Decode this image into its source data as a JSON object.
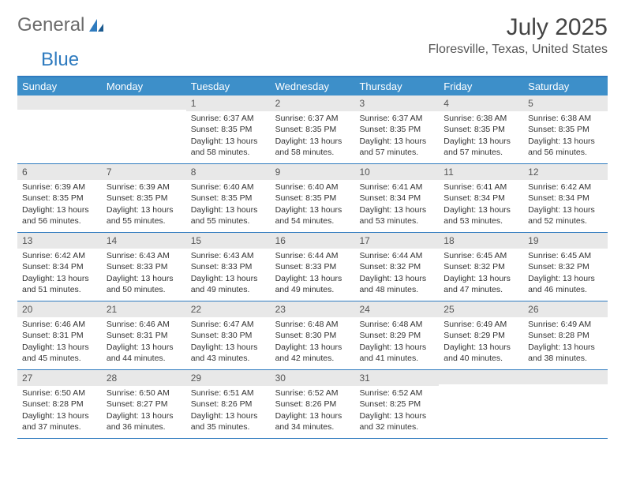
{
  "logo": {
    "text1": "General",
    "text2": "Blue"
  },
  "title": "July 2025",
  "location": "Floresville, Texas, United States",
  "colors": {
    "header_bg": "#3d8fc9",
    "border": "#2f7bbf",
    "daynum_bg": "#e8e8e8",
    "text": "#333333"
  },
  "day_names": [
    "Sunday",
    "Monday",
    "Tuesday",
    "Wednesday",
    "Thursday",
    "Friday",
    "Saturday"
  ],
  "weeks": [
    [
      {
        "num": "",
        "lines": []
      },
      {
        "num": "",
        "lines": []
      },
      {
        "num": "1",
        "lines": [
          "Sunrise: 6:37 AM",
          "Sunset: 8:35 PM",
          "Daylight: 13 hours",
          "and 58 minutes."
        ]
      },
      {
        "num": "2",
        "lines": [
          "Sunrise: 6:37 AM",
          "Sunset: 8:35 PM",
          "Daylight: 13 hours",
          "and 58 minutes."
        ]
      },
      {
        "num": "3",
        "lines": [
          "Sunrise: 6:37 AM",
          "Sunset: 8:35 PM",
          "Daylight: 13 hours",
          "and 57 minutes."
        ]
      },
      {
        "num": "4",
        "lines": [
          "Sunrise: 6:38 AM",
          "Sunset: 8:35 PM",
          "Daylight: 13 hours",
          "and 57 minutes."
        ]
      },
      {
        "num": "5",
        "lines": [
          "Sunrise: 6:38 AM",
          "Sunset: 8:35 PM",
          "Daylight: 13 hours",
          "and 56 minutes."
        ]
      }
    ],
    [
      {
        "num": "6",
        "lines": [
          "Sunrise: 6:39 AM",
          "Sunset: 8:35 PM",
          "Daylight: 13 hours",
          "and 56 minutes."
        ]
      },
      {
        "num": "7",
        "lines": [
          "Sunrise: 6:39 AM",
          "Sunset: 8:35 PM",
          "Daylight: 13 hours",
          "and 55 minutes."
        ]
      },
      {
        "num": "8",
        "lines": [
          "Sunrise: 6:40 AM",
          "Sunset: 8:35 PM",
          "Daylight: 13 hours",
          "and 55 minutes."
        ]
      },
      {
        "num": "9",
        "lines": [
          "Sunrise: 6:40 AM",
          "Sunset: 8:35 PM",
          "Daylight: 13 hours",
          "and 54 minutes."
        ]
      },
      {
        "num": "10",
        "lines": [
          "Sunrise: 6:41 AM",
          "Sunset: 8:34 PM",
          "Daylight: 13 hours",
          "and 53 minutes."
        ]
      },
      {
        "num": "11",
        "lines": [
          "Sunrise: 6:41 AM",
          "Sunset: 8:34 PM",
          "Daylight: 13 hours",
          "and 53 minutes."
        ]
      },
      {
        "num": "12",
        "lines": [
          "Sunrise: 6:42 AM",
          "Sunset: 8:34 PM",
          "Daylight: 13 hours",
          "and 52 minutes."
        ]
      }
    ],
    [
      {
        "num": "13",
        "lines": [
          "Sunrise: 6:42 AM",
          "Sunset: 8:34 PM",
          "Daylight: 13 hours",
          "and 51 minutes."
        ]
      },
      {
        "num": "14",
        "lines": [
          "Sunrise: 6:43 AM",
          "Sunset: 8:33 PM",
          "Daylight: 13 hours",
          "and 50 minutes."
        ]
      },
      {
        "num": "15",
        "lines": [
          "Sunrise: 6:43 AM",
          "Sunset: 8:33 PM",
          "Daylight: 13 hours",
          "and 49 minutes."
        ]
      },
      {
        "num": "16",
        "lines": [
          "Sunrise: 6:44 AM",
          "Sunset: 8:33 PM",
          "Daylight: 13 hours",
          "and 49 minutes."
        ]
      },
      {
        "num": "17",
        "lines": [
          "Sunrise: 6:44 AM",
          "Sunset: 8:32 PM",
          "Daylight: 13 hours",
          "and 48 minutes."
        ]
      },
      {
        "num": "18",
        "lines": [
          "Sunrise: 6:45 AM",
          "Sunset: 8:32 PM",
          "Daylight: 13 hours",
          "and 47 minutes."
        ]
      },
      {
        "num": "19",
        "lines": [
          "Sunrise: 6:45 AM",
          "Sunset: 8:32 PM",
          "Daylight: 13 hours",
          "and 46 minutes."
        ]
      }
    ],
    [
      {
        "num": "20",
        "lines": [
          "Sunrise: 6:46 AM",
          "Sunset: 8:31 PM",
          "Daylight: 13 hours",
          "and 45 minutes."
        ]
      },
      {
        "num": "21",
        "lines": [
          "Sunrise: 6:46 AM",
          "Sunset: 8:31 PM",
          "Daylight: 13 hours",
          "and 44 minutes."
        ]
      },
      {
        "num": "22",
        "lines": [
          "Sunrise: 6:47 AM",
          "Sunset: 8:30 PM",
          "Daylight: 13 hours",
          "and 43 minutes."
        ]
      },
      {
        "num": "23",
        "lines": [
          "Sunrise: 6:48 AM",
          "Sunset: 8:30 PM",
          "Daylight: 13 hours",
          "and 42 minutes."
        ]
      },
      {
        "num": "24",
        "lines": [
          "Sunrise: 6:48 AM",
          "Sunset: 8:29 PM",
          "Daylight: 13 hours",
          "and 41 minutes."
        ]
      },
      {
        "num": "25",
        "lines": [
          "Sunrise: 6:49 AM",
          "Sunset: 8:29 PM",
          "Daylight: 13 hours",
          "and 40 minutes."
        ]
      },
      {
        "num": "26",
        "lines": [
          "Sunrise: 6:49 AM",
          "Sunset: 8:28 PM",
          "Daylight: 13 hours",
          "and 38 minutes."
        ]
      }
    ],
    [
      {
        "num": "27",
        "lines": [
          "Sunrise: 6:50 AM",
          "Sunset: 8:28 PM",
          "Daylight: 13 hours",
          "and 37 minutes."
        ]
      },
      {
        "num": "28",
        "lines": [
          "Sunrise: 6:50 AM",
          "Sunset: 8:27 PM",
          "Daylight: 13 hours",
          "and 36 minutes."
        ]
      },
      {
        "num": "29",
        "lines": [
          "Sunrise: 6:51 AM",
          "Sunset: 8:26 PM",
          "Daylight: 13 hours",
          "and 35 minutes."
        ]
      },
      {
        "num": "30",
        "lines": [
          "Sunrise: 6:52 AM",
          "Sunset: 8:26 PM",
          "Daylight: 13 hours",
          "and 34 minutes."
        ]
      },
      {
        "num": "31",
        "lines": [
          "Sunrise: 6:52 AM",
          "Sunset: 8:25 PM",
          "Daylight: 13 hours",
          "and 32 minutes."
        ]
      },
      {
        "num": "",
        "lines": []
      },
      {
        "num": "",
        "lines": []
      }
    ]
  ]
}
